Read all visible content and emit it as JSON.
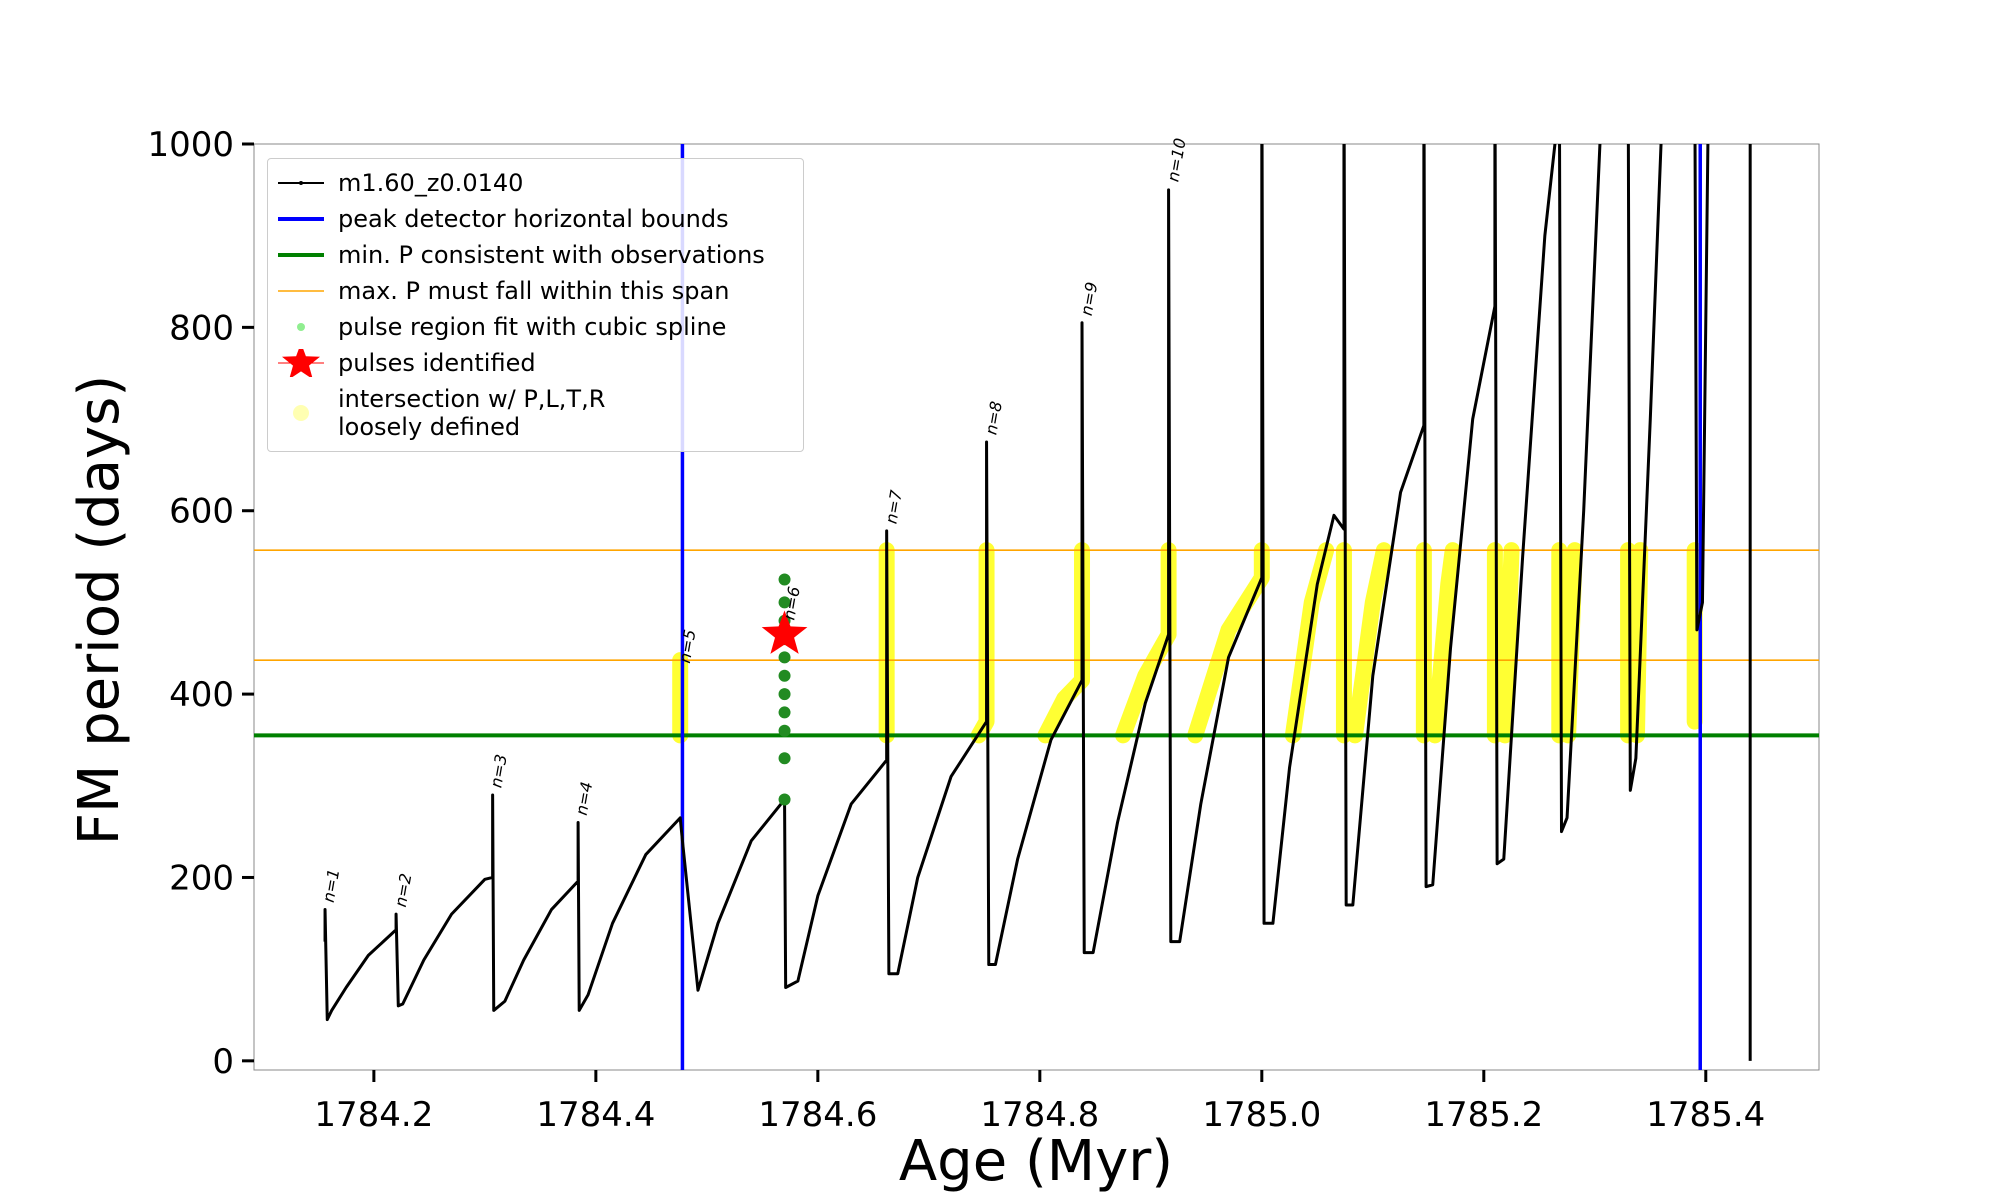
{
  "chart_data": {
    "type": "line",
    "xlabel": "Age (Myr)",
    "ylabel": "FM period (days)",
    "xlim": [
      1784.092,
      1785.502
    ],
    "ylim": [
      -10,
      1000
    ],
    "xticks": [
      1784.2,
      1784.4,
      1784.6,
      1784.8,
      {
        "value": 1785,
        "label": "1785.0"
      },
      1785.2,
      1785.4
    ],
    "yticks": [
      0,
      200,
      400,
      600,
      800,
      1000
    ],
    "series": [
      {
        "name": "m1.60_z0.0140",
        "kind": "line",
        "color": "#000000",
        "x": [
          1784.156,
          1784.156,
          1784.158,
          1784.162,
          1784.175,
          1784.195,
          1784.22,
          1784.22,
          1784.222,
          1784.226,
          1784.245,
          1784.27,
          1784.3,
          1784.307,
          1784.307,
          1784.308,
          1784.318,
          1784.335,
          1784.36,
          1784.384,
          1784.384,
          1784.385,
          1784.393,
          1784.415,
          1784.445,
          1784.476,
          1784.478,
          1784.492,
          1784.51,
          1784.54,
          1784.57,
          1784.571,
          1784.582,
          1784.6,
          1784.63,
          1784.662,
          1784.662,
          1784.664,
          1784.672,
          1784.69,
          1784.72,
          1784.752,
          1784.752,
          1784.754,
          1784.76,
          1784.78,
          1784.81,
          1784.838,
          1784.838,
          1784.84,
          1784.848,
          1784.87,
          1784.895,
          1784.916,
          1784.916,
          1784.918,
          1784.926,
          1784.945,
          1784.97,
          1785.0,
          1785.0,
          1785.002,
          1785.01,
          1785.025,
          1785.05,
          1785.065,
          1785.074,
          1785.074,
          1785.076,
          1785.082,
          1785.1,
          1785.125,
          1785.146,
          1785.146,
          1785.148,
          1785.154,
          1785.17,
          1785.19,
          1785.21,
          1785.21,
          1785.212,
          1785.218,
          1785.235,
          1785.255,
          1785.265,
          1785.268,
          1785.27,
          1785.275,
          1785.29,
          1785.305,
          1785.33,
          1785.332,
          1785.337,
          1785.35,
          1785.36,
          1785.39,
          1785.392,
          1785.397,
          1785.402,
          null,
          1785.44,
          1785.44
        ],
        "values": [
          130,
          165,
          45,
          55,
          80,
          115,
          143,
          160,
          60,
          62,
          110,
          160,
          198,
          200,
          290,
          55,
          65,
          110,
          165,
          196,
          260,
          55,
          72,
          150,
          225,
          265,
          240,
          77,
          150,
          240,
          285,
          80,
          87,
          180,
          280,
          328,
          578,
          95,
          95,
          200,
          310,
          370,
          675,
          105,
          105,
          220,
          350,
          415,
          805,
          118,
          118,
          260,
          390,
          465,
          950,
          130,
          130,
          280,
          440,
          527,
          1100,
          150,
          150,
          320,
          520,
          595,
          580,
          1100,
          170,
          170,
          420,
          620,
          693,
          1100,
          190,
          192,
          450,
          700,
          823,
          1100,
          215,
          220,
          550,
          900,
          1010,
          1100,
          250,
          265,
          600,
          1010,
          1100,
          295,
          330,
          700,
          1010,
          1100,
          470,
          500,
          1010,
          null,
          1100,
          0
        ]
      },
      {
        "name": "peak detector horizontal bounds",
        "kind": "vline",
        "color": "#0000ff",
        "x": [
          1784.478,
          1785.395
        ]
      },
      {
        "name": "min. P consistent with observations",
        "kind": "hline",
        "color": "#008000",
        "values": [
          355
        ]
      },
      {
        "name": "max. P must fall within this span",
        "kind": "hline",
        "color": "#ffa500",
        "values": [
          437,
          557
        ]
      },
      {
        "name": "pulse region fit with cubic spline",
        "kind": "points",
        "color": "#228b22",
        "x": [
          1784.57,
          1784.57,
          1784.57,
          1784.57,
          1784.57,
          1784.57,
          1784.57,
          1784.57,
          1784.57,
          1784.57,
          1784.57
        ],
        "values": [
          285,
          330,
          360,
          380,
          400,
          420,
          440,
          460,
          480,
          500,
          525
        ]
      },
      {
        "name": "pulses identified",
        "kind": "star",
        "color": "#ff0000",
        "x": [
          1784.57
        ],
        "values": [
          465
        ]
      },
      {
        "name": "intersection w/ P,L,T,R\nloosely defined",
        "kind": "band",
        "color": "#ffff00",
        "x": [
          1784.476,
          1784.476,
          null,
          1784.662,
          1784.662,
          null,
          1784.745,
          1784.752,
          1784.752,
          null,
          1784.805,
          1784.822,
          1784.838,
          1784.838,
          null,
          1784.875,
          1784.895,
          1784.916,
          1784.916,
          null,
          1784.94,
          1784.97,
          1785.0,
          1785.0,
          null,
          1785.028,
          1785.045,
          1785.058,
          null,
          1785.074,
          1785.074,
          null,
          1785.084,
          1785.1,
          1785.11,
          null,
          1785.146,
          1785.146,
          null,
          1785.156,
          1785.168,
          1785.172,
          null,
          1785.21,
          1785.21,
          null,
          1785.219,
          1785.225,
          null,
          1785.268,
          1785.268,
          null,
          1785.276,
          1785.282,
          null,
          1785.33,
          1785.33,
          null,
          1785.338,
          1785.341,
          null,
          1785.39,
          1785.39
        ],
        "values": [
          355,
          437,
          null,
          355,
          557,
          null,
          355,
          370,
          557,
          null,
          355,
          395,
          415,
          557,
          null,
          355,
          420,
          465,
          557,
          null,
          355,
          470,
          527,
          557,
          null,
          355,
          500,
          557,
          null,
          355,
          557,
          null,
          355,
          500,
          557,
          null,
          355,
          557,
          null,
          355,
          520,
          557,
          null,
          355,
          557,
          null,
          355,
          557,
          null,
          355,
          557,
          null,
          355,
          557,
          null,
          355,
          557,
          null,
          355,
          557,
          null,
          370,
          557
        ]
      }
    ],
    "annotations": [
      {
        "text": "n=1",
        "x": 1784.16,
        "y": 172
      },
      {
        "text": "n=2",
        "x": 1784.225,
        "y": 167
      },
      {
        "text": "n=3",
        "x": 1784.311,
        "y": 297
      },
      {
        "text": "n=4",
        "x": 1784.388,
        "y": 267
      },
      {
        "text": "n=5",
        "x": 1784.481,
        "y": 433
      },
      {
        "text": "n=6",
        "x": 1784.575,
        "y": 480
      },
      {
        "text": "n=7",
        "x": 1784.667,
        "y": 585
      },
      {
        "text": "n=8",
        "x": 1784.757,
        "y": 682
      },
      {
        "text": "n=9",
        "x": 1784.843,
        "y": 812
      },
      {
        "text": "n=10",
        "x": 1784.921,
        "y": 958
      }
    ]
  }
}
